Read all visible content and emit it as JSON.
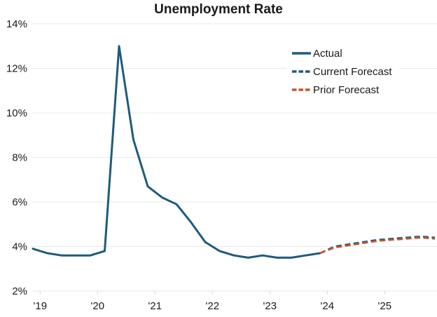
{
  "title": "Unemployment Rate",
  "colors": {
    "actual": "#1f5b7c",
    "current_forecast": "#1f5b7c",
    "prior_forecast": "#c2572e",
    "grid": "#e8e8e8",
    "axis_tick": "#d9d9d9",
    "text": "#1a1a1a",
    "background": "#ffffff"
  },
  "chart_data": {
    "type": "line",
    "title": "Unemployment Rate",
    "frequency": "quarterly",
    "grid": "horizontal-only",
    "legend_position": "upper-right-inside",
    "x_axis": {
      "tick_labels": [
        "'19",
        "'20",
        "'21",
        "'22",
        "'23",
        "'24",
        "'25"
      ],
      "tick_offsets_quarters": [
        0.5,
        4.5,
        8.5,
        12.5,
        16.5,
        20.5,
        24.5
      ]
    },
    "y_axis": {
      "range": [
        2,
        14
      ],
      "tick_values": [
        14,
        12,
        10,
        8,
        6,
        4,
        2
      ],
      "tick_labels": [
        "14%",
        "12%",
        "10%",
        "8%",
        "6%",
        "4%",
        "2%"
      ]
    },
    "series": [
      {
        "name": "Actual",
        "line_style": "solid",
        "color": "#1f5b7c",
        "start": "2018 Q4",
        "end": "2023 Q4",
        "start_offset_quarters": 0,
        "values": [
          3.9,
          3.7,
          3.6,
          3.6,
          3.6,
          3.8,
          13.0,
          8.8,
          6.7,
          6.2,
          5.9,
          5.1,
          4.2,
          3.8,
          3.6,
          3.5,
          3.6,
          3.5,
          3.5,
          3.6,
          3.7
        ]
      },
      {
        "name": "Current Forecast",
        "line_style": "dashed",
        "color": "#1f5b7c",
        "start": "2023 Q4",
        "end": "2025 Q4",
        "start_offset_quarters": 20,
        "values": [
          3.7,
          4.0,
          4.1,
          4.2,
          4.3,
          4.35,
          4.4,
          4.45,
          4.4
        ]
      },
      {
        "name": "Prior Forecast",
        "line_style": "dashed",
        "color": "#c2572e",
        "start": "2023 Q4",
        "end": "2025 Q4",
        "start_offset_quarters": 20,
        "values": [
          3.7,
          3.95,
          4.05,
          4.15,
          4.25,
          4.3,
          4.35,
          4.4,
          4.35
        ]
      }
    ]
  }
}
